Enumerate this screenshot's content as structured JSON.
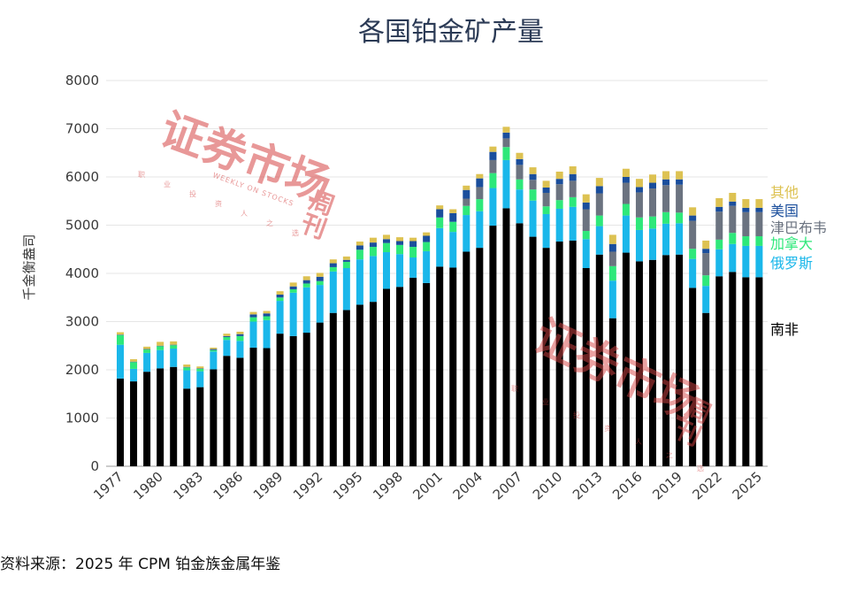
{
  "chart_data": {
    "type": "bar",
    "stacked": true,
    "title": "各国铂金矿产量",
    "ylabel": "千金衡盎司",
    "xlabel": "",
    "ylim": [
      0,
      8000
    ],
    "yticks": [
      0,
      1000,
      2000,
      3000,
      4000,
      5000,
      6000,
      7000,
      8000
    ],
    "grid": true,
    "legend_position": "right",
    "source": "资料来源：2025 年 CPM 铂金族金属年鉴",
    "categories": [
      1977,
      1978,
      1979,
      1980,
      1981,
      1982,
      1983,
      1984,
      1985,
      1986,
      1987,
      1988,
      1989,
      1990,
      1991,
      1992,
      1993,
      1994,
      1995,
      1996,
      1997,
      1998,
      1999,
      2000,
      2001,
      2002,
      2003,
      2004,
      2005,
      2006,
      2007,
      2008,
      2009,
      2010,
      2011,
      2012,
      2013,
      2014,
      2015,
      2016,
      2017,
      2018,
      2019,
      2020,
      2021,
      2022,
      2023,
      2024,
      2025
    ],
    "xtick_labels": [
      "1977",
      "1980",
      "1983",
      "1986",
      "1989",
      "1992",
      "1995",
      "1998",
      "2001",
      "2004",
      "2007",
      "2010",
      "2013",
      "2016",
      "2019",
      "2022",
      "2025"
    ],
    "series": [
      {
        "name": "南非",
        "color": "#000000",
        "values": [
          1820,
          1760,
          1960,
          2030,
          2060,
          1610,
          1640,
          2010,
          2290,
          2250,
          2460,
          2450,
          2750,
          2700,
          2770,
          2980,
          3180,
          3240,
          3350,
          3410,
          3680,
          3720,
          3910,
          3800,
          4140,
          4120,
          4450,
          4530,
          4990,
          5350,
          5040,
          4760,
          4530,
          4660,
          4680,
          4110,
          4390,
          3070,
          4430,
          4250,
          4280,
          4380,
          4390,
          3700,
          3180,
          3940,
          4030,
          3920,
          3920
        ]
      },
      {
        "name": "俄罗斯",
        "color": "#1ab7ea",
        "values": [
          700,
          260,
          390,
          380,
          380,
          380,
          330,
          370,
          330,
          350,
          540,
          580,
          680,
          900,
          940,
          780,
          860,
          870,
          940,
          950,
          760,
          680,
          420,
          660,
          800,
          740,
          760,
          760,
          780,
          1000,
          700,
          750,
          700,
          680,
          700,
          600,
          590,
          780,
          770,
          650,
          650,
          650,
          650,
          600,
          560,
          560,
          580,
          650,
          650
        ]
      },
      {
        "name": "加拿大",
        "color": "#2ee87a",
        "values": [
          200,
          140,
          70,
          80,
          70,
          60,
          50,
          30,
          60,
          100,
          90,
          80,
          70,
          70,
          80,
          80,
          90,
          130,
          200,
          190,
          190,
          190,
          220,
          190,
          220,
          210,
          190,
          250,
          310,
          270,
          210,
          230,
          160,
          180,
          200,
          170,
          220,
          300,
          240,
          260,
          250,
          240,
          220,
          210,
          220,
          200,
          230,
          200,
          200
        ]
      },
      {
        "name": "津巴布韦",
        "color": "#6b7380",
        "values": [
          0,
          0,
          0,
          0,
          0,
          0,
          0,
          0,
          0,
          0,
          0,
          0,
          0,
          0,
          0,
          0,
          0,
          0,
          0,
          0,
          0,
          0,
          0,
          0,
          0,
          0,
          150,
          250,
          270,
          180,
          300,
          200,
          280,
          330,
          340,
          450,
          460,
          300,
          440,
          520,
          580,
          560,
          580,
          580,
          460,
          580,
          560,
          500,
          500
        ]
      },
      {
        "name": "美国",
        "color": "#1a4e9c",
        "values": [
          10,
          10,
          10,
          10,
          10,
          10,
          10,
          20,
          20,
          40,
          60,
          60,
          60,
          60,
          70,
          90,
          80,
          40,
          90,
          90,
          80,
          80,
          120,
          130,
          170,
          180,
          180,
          180,
          170,
          120,
          120,
          120,
          110,
          110,
          140,
          140,
          150,
          160,
          120,
          110,
          120,
          120,
          110,
          110,
          90,
          100,
          90,
          90,
          90
        ]
      },
      {
        "name": "其他",
        "color": "#ddc252",
        "values": [
          50,
          50,
          50,
          80,
          70,
          50,
          40,
          30,
          50,
          50,
          50,
          50,
          70,
          80,
          80,
          80,
          80,
          70,
          80,
          100,
          90,
          80,
          70,
          70,
          80,
          80,
          90,
          90,
          110,
          120,
          130,
          140,
          140,
          150,
          160,
          170,
          170,
          190,
          170,
          170,
          170,
          170,
          170,
          170,
          170,
          180,
          180,
          180,
          180
        ]
      }
    ]
  },
  "watermark": {
    "main_text": "证券市场",
    "side_text": "周刊",
    "english_text": "WEEKLY ON STOCKS",
    "slogan_chars": [
      "职",
      "业",
      "投",
      "资",
      "人",
      "之",
      "选"
    ]
  }
}
